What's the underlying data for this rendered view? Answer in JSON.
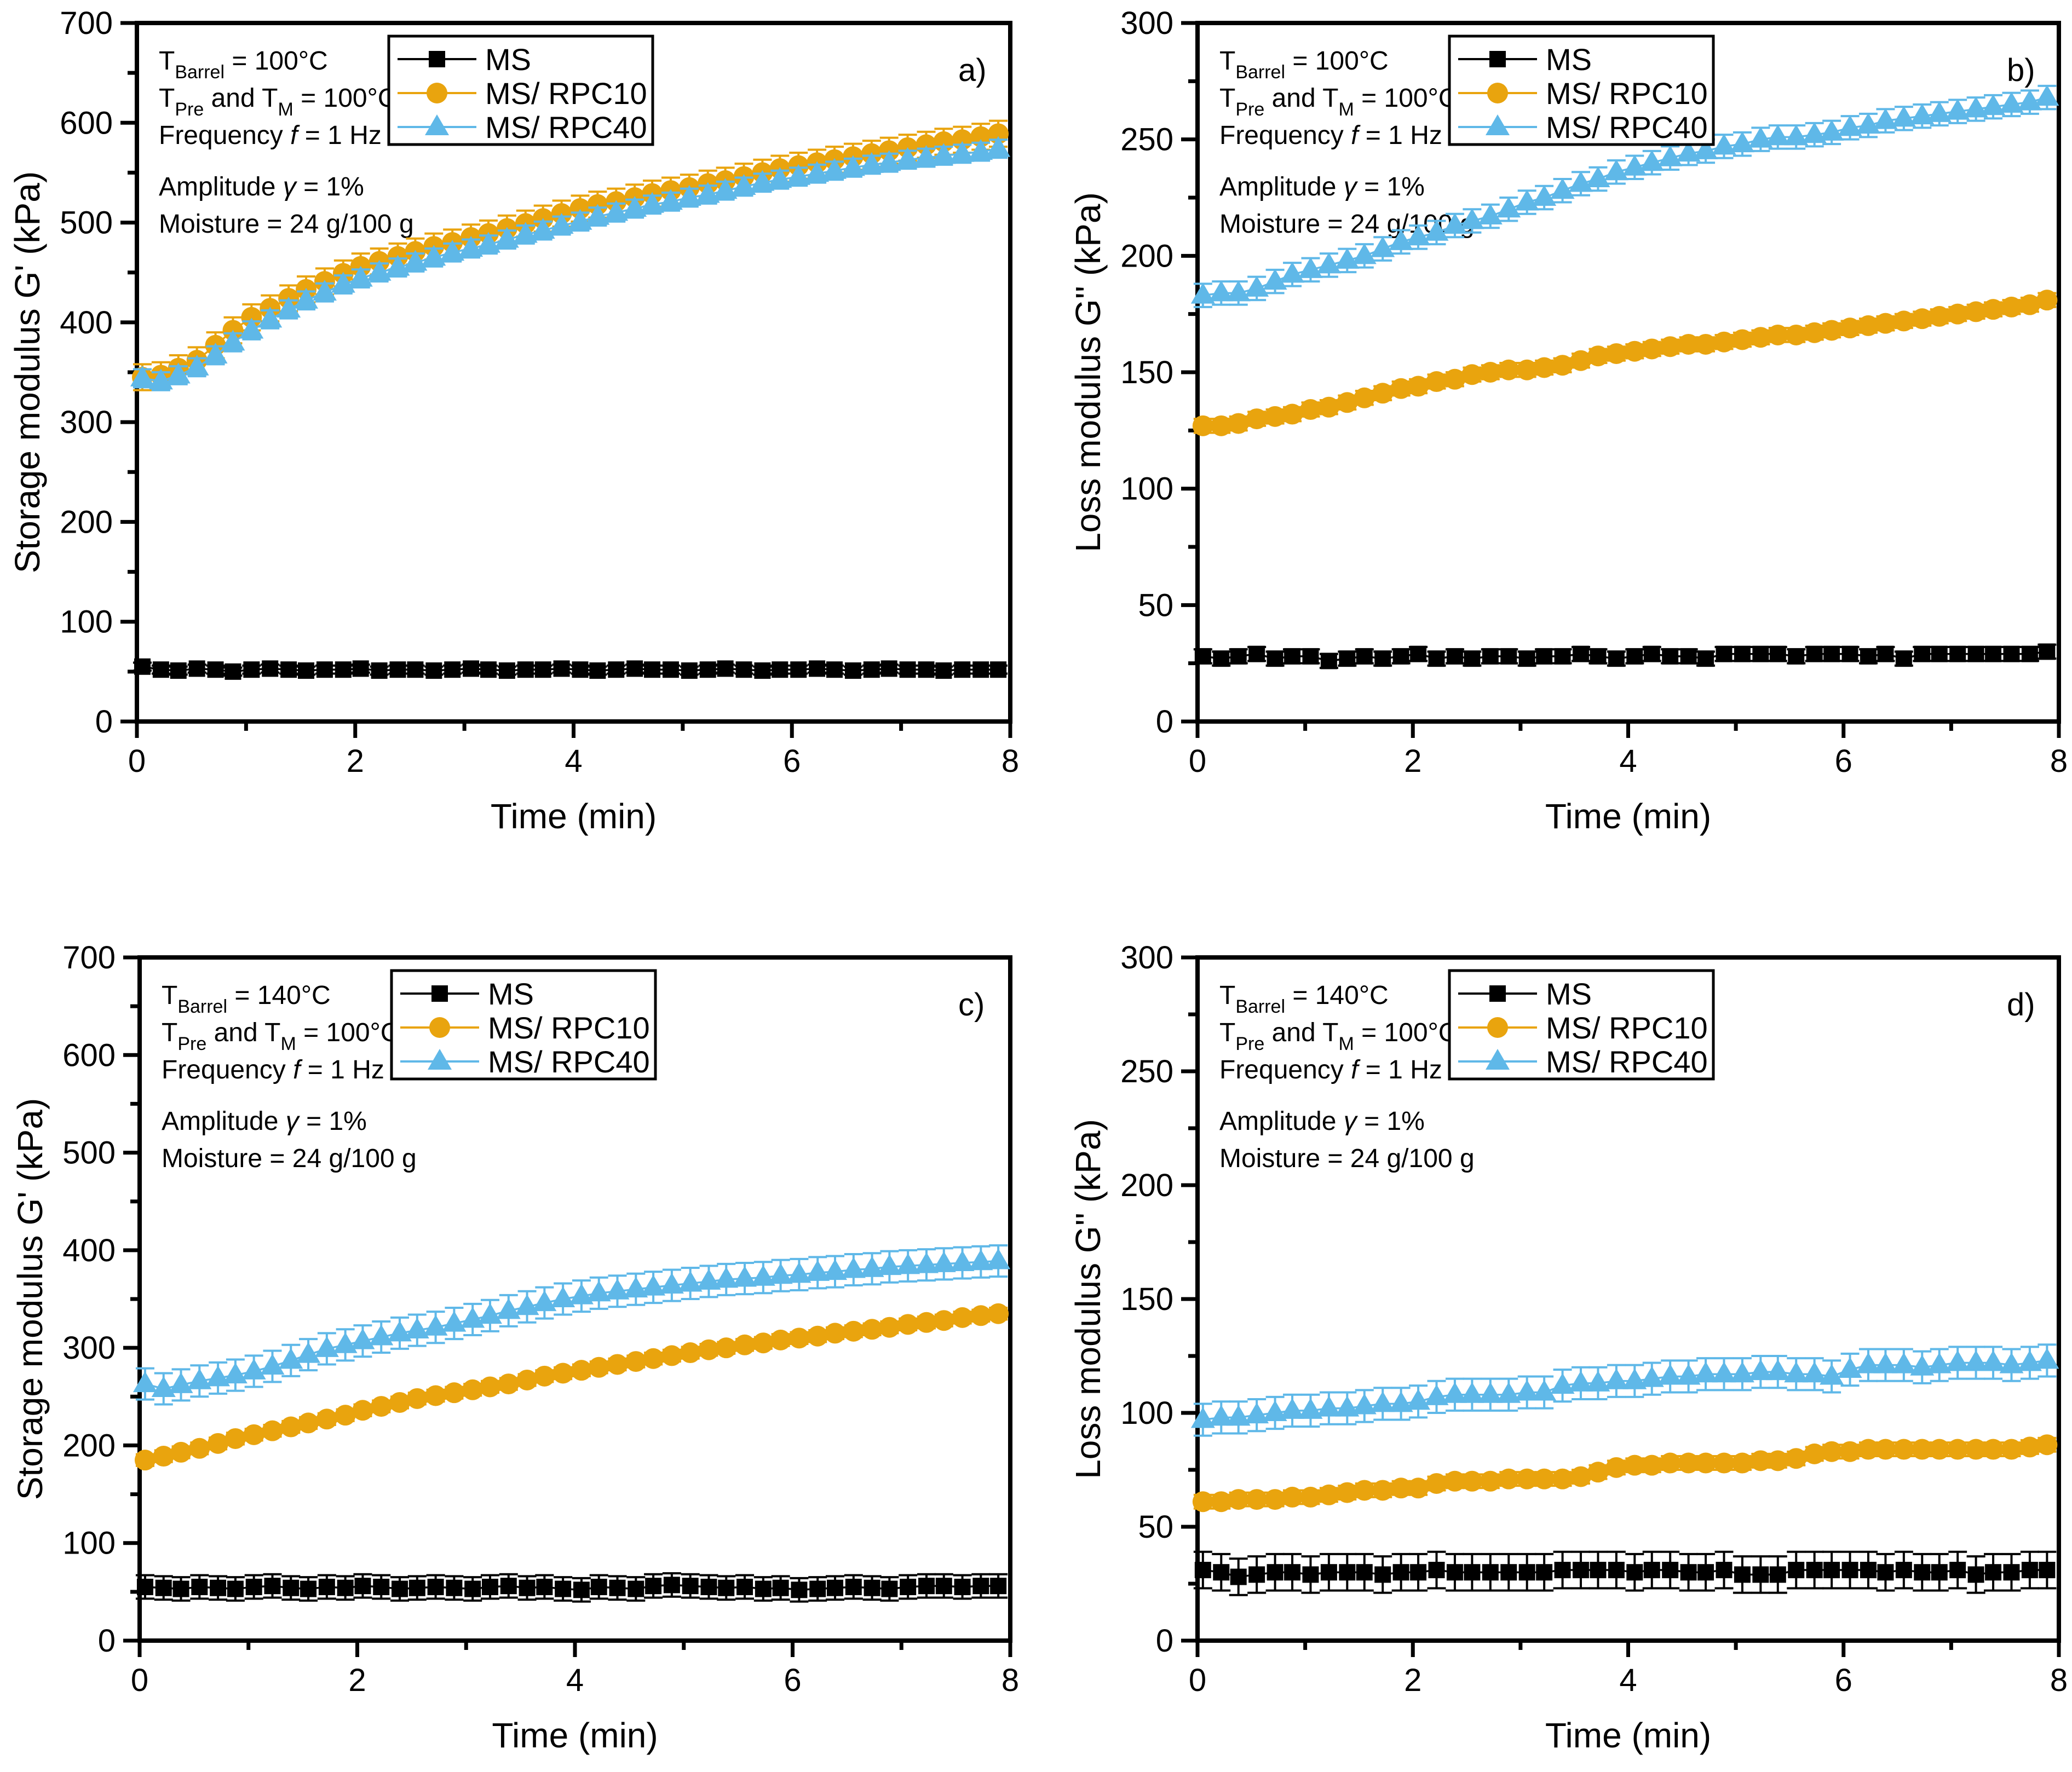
{
  "page": {
    "background": "#ffffff"
  },
  "chart_data": [
    {
      "id": "a",
      "panel_label": "a)",
      "type": "scatter",
      "xlabel": "Time (min)",
      "ylabel": "Storage modulus G' (kPa)",
      "xlim": [
        0,
        8
      ],
      "ylim": [
        0,
        700
      ],
      "xticks": [
        0,
        2,
        4,
        6,
        8
      ],
      "xminor": [
        1,
        3,
        5,
        7
      ],
      "yticks": [
        0,
        100,
        200,
        300,
        400,
        500,
        600,
        700
      ],
      "yminor": [
        50,
        150,
        250,
        350,
        450,
        550,
        650
      ],
      "grid": false,
      "legend_position": "top-center-inside",
      "annotations": [
        "T_{Barrel} = 100°C",
        "T_{Pre} and T_{M} = 100°C",
        "Frequency *f* = 1 Hz",
        "Amplitude *γ* = 1%",
        "Moisture = 24 g/100 g"
      ],
      "x": [
        0.05,
        0.22,
        0.38,
        0.55,
        0.72,
        0.88,
        1.05,
        1.22,
        1.39,
        1.55,
        1.72,
        1.89,
        2.05,
        2.22,
        2.39,
        2.55,
        2.72,
        2.89,
        3.06,
        3.22,
        3.39,
        3.56,
        3.72,
        3.89,
        4.06,
        4.22,
        4.39,
        4.56,
        4.72,
        4.89,
        5.06,
        5.23,
        5.39,
        5.56,
        5.73,
        5.89,
        6.06,
        6.23,
        6.39,
        6.56,
        6.73,
        6.89,
        7.06,
        7.23,
        7.39,
        7.56,
        7.73,
        7.89
      ],
      "series": [
        {
          "name": "MS",
          "marker": "square",
          "color": "#000000",
          "err": 4,
          "values": [
            55,
            52,
            51,
            53,
            52,
            50,
            52,
            53,
            52,
            51,
            52,
            52,
            53,
            51,
            52,
            52,
            51,
            52,
            53,
            52,
            51,
            52,
            52,
            53,
            52,
            51,
            52,
            53,
            52,
            52,
            51,
            52,
            53,
            52,
            51,
            52,
            52,
            53,
            52,
            51,
            52,
            53,
            52,
            52,
            51,
            52,
            52,
            52
          ]
        },
        {
          "name": "MS/ RPC10",
          "marker": "circle",
          "color": "#E9A40E",
          "err": 13,
          "values": [
            345,
            347,
            354,
            362,
            377,
            392,
            405,
            414,
            424,
            433,
            441,
            449,
            456,
            461,
            466,
            471,
            476,
            480,
            485,
            489,
            494,
            499,
            504,
            509,
            514,
            518,
            521,
            525,
            529,
            532,
            535,
            539,
            542,
            546,
            550,
            554,
            557,
            560,
            563,
            566,
            569,
            572,
            575,
            578,
            581,
            583,
            586,
            589
          ]
        },
        {
          "name": "MS/ RPC40",
          "marker": "triangle",
          "color": "#5FB8E8",
          "err": 9,
          "values": [
            344,
            341,
            347,
            355,
            367,
            380,
            392,
            403,
            413,
            422,
            430,
            438,
            444,
            450,
            455,
            460,
            465,
            470,
            474,
            478,
            483,
            488,
            492,
            497,
            501,
            506,
            510,
            514,
            518,
            521,
            525,
            528,
            532,
            536,
            540,
            543,
            546,
            549,
            552,
            555,
            558,
            560,
            563,
            565,
            567,
            569,
            571,
            574
          ]
        }
      ]
    },
    {
      "id": "b",
      "panel_label": "b)",
      "type": "scatter",
      "xlabel": "Time (min)",
      "ylabel": "Loss modulus G'' (kPa)",
      "xlim": [
        0,
        8
      ],
      "ylim": [
        0,
        300
      ],
      "xticks": [
        0,
        2,
        4,
        6,
        8
      ],
      "xminor": [
        1,
        3,
        5,
        7
      ],
      "yticks": [
        0,
        50,
        100,
        150,
        200,
        250,
        300
      ],
      "yminor": [
        25,
        75,
        125,
        175,
        225,
        275
      ],
      "grid": false,
      "legend_position": "top-center-inside",
      "annotations": [
        "T_{Barrel} = 100°C",
        "T_{Pre} and T_{M} = 100°C",
        "Frequency *f* = 1 Hz",
        "Amplitude *γ* = 1%",
        "Moisture = 24 g/100 g"
      ],
      "x": [
        0.05,
        0.22,
        0.38,
        0.55,
        0.72,
        0.88,
        1.05,
        1.22,
        1.39,
        1.55,
        1.72,
        1.89,
        2.05,
        2.22,
        2.39,
        2.55,
        2.72,
        2.89,
        3.06,
        3.22,
        3.39,
        3.56,
        3.72,
        3.89,
        4.06,
        4.22,
        4.39,
        4.56,
        4.72,
        4.89,
        5.06,
        5.23,
        5.39,
        5.56,
        5.73,
        5.89,
        6.06,
        6.23,
        6.39,
        6.56,
        6.73,
        6.89,
        7.06,
        7.23,
        7.39,
        7.56,
        7.73,
        7.89
      ],
      "series": [
        {
          "name": "MS",
          "marker": "square",
          "color": "#000000",
          "err": 3,
          "values": [
            28,
            27,
            28,
            29,
            27,
            28,
            28,
            26,
            27,
            28,
            27,
            28,
            29,
            27,
            28,
            27,
            28,
            28,
            27,
            28,
            28,
            29,
            28,
            27,
            28,
            29,
            28,
            28,
            27,
            29,
            29,
            29,
            29,
            28,
            29,
            29,
            29,
            28,
            29,
            27,
            29,
            29,
            29,
            29,
            29,
            29,
            29,
            30
          ]
        },
        {
          "name": "MS/ RPC10",
          "marker": "circle",
          "color": "#E9A40E",
          "err": 3,
          "values": [
            127,
            127,
            128,
            130,
            131,
            132,
            134,
            135,
            137,
            139,
            141,
            143,
            144,
            146,
            147,
            149,
            150,
            151,
            151,
            152,
            153,
            155,
            157,
            158,
            159,
            160,
            161,
            162,
            162,
            163,
            164,
            165,
            166,
            166,
            167,
            168,
            169,
            170,
            171,
            172,
            173,
            174,
            175,
            176,
            177,
            178,
            179,
            181
          ]
        },
        {
          "name": "MS/ RPC40",
          "marker": "triangle",
          "color": "#5FB8E8",
          "err": 5,
          "values": [
            183,
            184,
            184,
            186,
            189,
            192,
            194,
            196,
            198,
            200,
            203,
            206,
            208,
            210,
            213,
            215,
            217,
            220,
            223,
            225,
            228,
            231,
            233,
            236,
            238,
            240,
            242,
            244,
            245,
            247,
            248,
            250,
            251,
            251,
            252,
            253,
            255,
            256,
            258,
            259,
            260,
            261,
            262,
            263,
            264,
            265,
            266,
            268
          ]
        }
      ]
    },
    {
      "id": "c",
      "panel_label": "c)",
      "type": "scatter",
      "xlabel": "Time (min)",
      "ylabel": "Storage modulus G' (kPa)",
      "xlim": [
        0,
        8
      ],
      "ylim": [
        0,
        700
      ],
      "xticks": [
        0,
        2,
        4,
        6,
        8
      ],
      "xminor": [
        1,
        3,
        5,
        7
      ],
      "yticks": [
        0,
        100,
        200,
        300,
        400,
        500,
        600,
        700
      ],
      "yminor": [
        50,
        150,
        250,
        350,
        450,
        550,
        650
      ],
      "grid": false,
      "legend_position": "top-center-inside",
      "annotations": [
        "T_{Barrel} = 140°C",
        "T_{Pre} and T_{M} = 100°C",
        "Frequency *f* = 1 Hz",
        "Amplitude *γ* = 1%",
        "Moisture = 24 g/100 g"
      ],
      "x": [
        0.05,
        0.22,
        0.38,
        0.55,
        0.72,
        0.88,
        1.05,
        1.22,
        1.39,
        1.55,
        1.72,
        1.89,
        2.05,
        2.22,
        2.39,
        2.55,
        2.72,
        2.89,
        3.06,
        3.22,
        3.39,
        3.56,
        3.72,
        3.89,
        4.06,
        4.22,
        4.39,
        4.56,
        4.72,
        4.89,
        5.06,
        5.23,
        5.39,
        5.56,
        5.73,
        5.89,
        6.06,
        6.23,
        6.39,
        6.56,
        6.73,
        6.89,
        7.06,
        7.23,
        7.39,
        7.56,
        7.73,
        7.89
      ],
      "series": [
        {
          "name": "MS",
          "marker": "square",
          "color": "#000000",
          "err": 12,
          "values": [
            55,
            54,
            53,
            55,
            54,
            53,
            55,
            56,
            54,
            53,
            55,
            54,
            56,
            55,
            53,
            54,
            55,
            54,
            53,
            55,
            56,
            54,
            55,
            53,
            52,
            55,
            54,
            53,
            56,
            57,
            56,
            55,
            54,
            55,
            53,
            54,
            52,
            53,
            54,
            55,
            54,
            53,
            55,
            56,
            56,
            55,
            56,
            56
          ]
        },
        {
          "name": "MS/ RPC10",
          "marker": "circle",
          "color": "#E9A40E",
          "err": 6,
          "values": [
            185,
            189,
            193,
            197,
            202,
            207,
            211,
            215,
            219,
            223,
            227,
            231,
            236,
            240,
            244,
            248,
            251,
            254,
            257,
            260,
            263,
            267,
            271,
            274,
            277,
            280,
            283,
            286,
            289,
            292,
            295,
            298,
            300,
            303,
            305,
            308,
            310,
            312,
            315,
            317,
            319,
            321,
            324,
            326,
            328,
            331,
            333,
            335
          ]
        },
        {
          "name": "MS/ RPC40",
          "marker": "triangle",
          "color": "#5FB8E8",
          "err": 16,
          "values": [
            263,
            258,
            262,
            266,
            269,
            272,
            276,
            281,
            287,
            293,
            299,
            303,
            307,
            311,
            315,
            318,
            321,
            325,
            329,
            333,
            338,
            342,
            346,
            350,
            353,
            356,
            358,
            360,
            362,
            364,
            366,
            368,
            370,
            371,
            372,
            374,
            375,
            377,
            378,
            380,
            381,
            383,
            384,
            385,
            386,
            387,
            388,
            389
          ]
        }
      ]
    },
    {
      "id": "d",
      "panel_label": "d)",
      "type": "scatter",
      "xlabel": "Time (min)",
      "ylabel": "Loss modulus G'' (kPa)",
      "xlim": [
        0,
        8
      ],
      "ylim": [
        0,
        300
      ],
      "xticks": [
        0,
        2,
        4,
        6,
        8
      ],
      "xminor": [
        1,
        3,
        5,
        7
      ],
      "yticks": [
        0,
        50,
        100,
        150,
        200,
        250,
        300
      ],
      "yminor": [
        25,
        75,
        125,
        175,
        225,
        275
      ],
      "grid": false,
      "legend_position": "top-center-inside",
      "annotations": [
        "T_{Barrel} = 140°C",
        "T_{Pre} and T_{M} = 100°C",
        "Frequency *f* = 1 Hz",
        "Amplitude *γ* = 1%",
        "Moisture = 24 g/100 g"
      ],
      "x": [
        0.05,
        0.22,
        0.38,
        0.55,
        0.72,
        0.88,
        1.05,
        1.22,
        1.39,
        1.55,
        1.72,
        1.89,
        2.05,
        2.22,
        2.39,
        2.55,
        2.72,
        2.89,
        3.06,
        3.22,
        3.39,
        3.56,
        3.72,
        3.89,
        4.06,
        4.22,
        4.39,
        4.56,
        4.72,
        4.89,
        5.06,
        5.23,
        5.39,
        5.56,
        5.73,
        5.89,
        6.06,
        6.23,
        6.39,
        6.56,
        6.73,
        6.89,
        7.06,
        7.23,
        7.39,
        7.56,
        7.73,
        7.89
      ],
      "series": [
        {
          "name": "MS",
          "marker": "square",
          "color": "#000000",
          "err": 8,
          "values": [
            31,
            30,
            28,
            29,
            30,
            30,
            29,
            30,
            30,
            30,
            29,
            30,
            30,
            31,
            30,
            30,
            30,
            30,
            30,
            30,
            31,
            31,
            31,
            31,
            30,
            31,
            31,
            30,
            30,
            31,
            29,
            29,
            29,
            31,
            31,
            31,
            31,
            31,
            30,
            31,
            30,
            30,
            31,
            29,
            30,
            30,
            31,
            31
          ]
        },
        {
          "name": "MS/ RPC10",
          "marker": "circle",
          "color": "#E9A40E",
          "err": 3,
          "values": [
            61,
            61,
            62,
            62,
            62,
            63,
            63,
            64,
            65,
            66,
            66,
            67,
            67,
            69,
            70,
            70,
            70,
            71,
            71,
            71,
            71,
            72,
            74,
            76,
            77,
            77,
            78,
            78,
            78,
            78,
            78,
            79,
            79,
            80,
            82,
            83,
            83,
            84,
            84,
            84,
            84,
            84,
            84,
            84,
            84,
            84,
            85,
            86
          ]
        },
        {
          "name": "MS/ RPC40",
          "marker": "triangle",
          "color": "#5FB8E8",
          "err": 7,
          "values": [
            97,
            98,
            98,
            99,
            100,
            101,
            101,
            102,
            102,
            103,
            104,
            104,
            105,
            107,
            108,
            108,
            108,
            108,
            109,
            109,
            112,
            113,
            113,
            114,
            114,
            115,
            116,
            116,
            117,
            117,
            117,
            118,
            118,
            117,
            117,
            116,
            119,
            121,
            121,
            121,
            120,
            121,
            122,
            122,
            122,
            121,
            122,
            123
          ]
        }
      ]
    }
  ]
}
